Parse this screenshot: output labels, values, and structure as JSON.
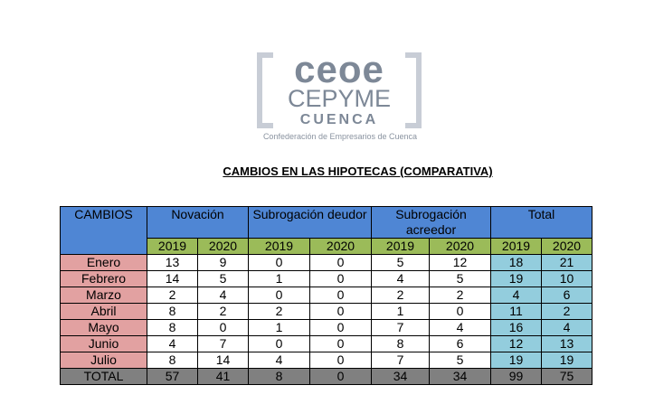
{
  "logo": {
    "line1": "ceoe",
    "line2": "CEPYME",
    "line3": "CUENCA",
    "tagline": "Confederación de Empresarios de Cuenca"
  },
  "title": "CAMBIOS EN LAS HIPOTECAS (COMPARATIVA)",
  "colors": {
    "header_blue": "#4f86d4",
    "year_green": "#9bbb59",
    "month_pink": "#e2a1a1",
    "total_cyan": "#93cddd",
    "total_row_gray": "#808080"
  },
  "table": {
    "corner": "CAMBIOS",
    "groups": [
      "Novación",
      "Subrogación deudor",
      "Subrogación acreedor",
      "Total"
    ],
    "years": [
      "2019",
      "2020",
      "2019",
      "2020",
      "2019",
      "2020",
      "2019",
      "2020"
    ],
    "rows": [
      {
        "label": "Enero",
        "values": [
          "13",
          "9",
          "0",
          "0",
          "5",
          "12",
          "18",
          "21"
        ]
      },
      {
        "label": "Febrero",
        "values": [
          "14",
          "5",
          "1",
          "0",
          "4",
          "5",
          "19",
          "10"
        ]
      },
      {
        "label": "Marzo",
        "values": [
          "2",
          "4",
          "0",
          "0",
          "2",
          "2",
          "4",
          "6"
        ]
      },
      {
        "label": "Abril",
        "values": [
          "8",
          "2",
          "2",
          "0",
          "1",
          "0",
          "11",
          "2"
        ]
      },
      {
        "label": "Mayo",
        "values": [
          "8",
          "0",
          "1",
          "0",
          "7",
          "4",
          "16",
          "4"
        ]
      },
      {
        "label": "Junio",
        "values": [
          "4",
          "7",
          "0",
          "0",
          "8",
          "6",
          "12",
          "13"
        ]
      },
      {
        "label": "Julio",
        "values": [
          "8",
          "14",
          "4",
          "0",
          "7",
          "5",
          "19",
          "19"
        ]
      }
    ],
    "total": {
      "label": "TOTAL",
      "values": [
        "57",
        "41",
        "8",
        "0",
        "34",
        "34",
        "99",
        "75"
      ]
    }
  }
}
